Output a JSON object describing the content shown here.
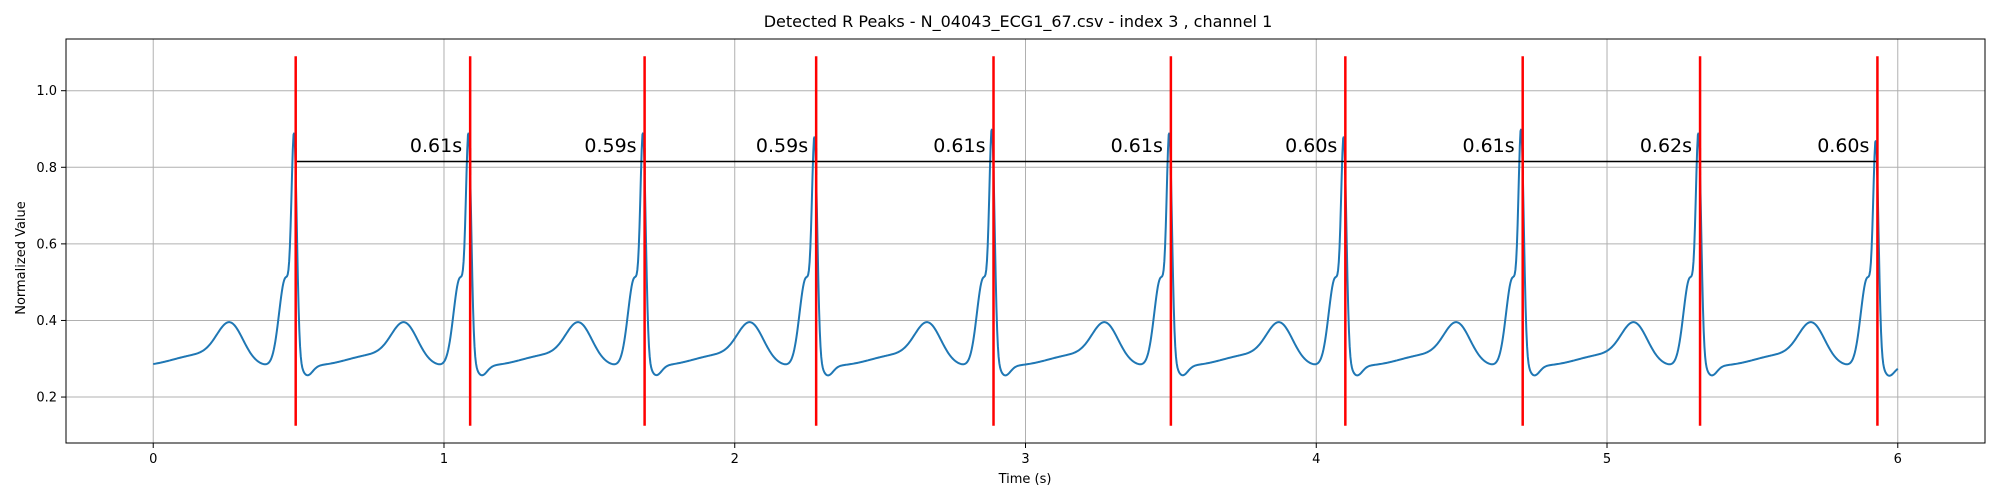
{
  "chart_data": {
    "type": "line",
    "title": "Detected R Peaks - N_04043_ECG1_67.csv - index 3 , channel 1",
    "xlabel": "Time (s)",
    "ylabel": "Normalized Value",
    "xlim": [
      -0.3,
      6.3
    ],
    "ylim": [
      0.08,
      1.135
    ],
    "x_ticks": [
      0,
      1,
      2,
      3,
      4,
      5,
      6
    ],
    "x_tick_labels": [
      "0",
      "1",
      "2",
      "3",
      "4",
      "5",
      "6"
    ],
    "y_ticks": [
      0.2,
      0.4,
      0.6,
      0.8,
      1.0
    ],
    "y_tick_labels": [
      "0.2",
      "0.4",
      "0.6",
      "0.8",
      "1.0"
    ],
    "grid": true,
    "signal": {
      "duration": 6.0,
      "color": "#1f77b4",
      "baseline": 0.28
    },
    "r_peaks": {
      "times": [
        0.49,
        1.09,
        1.69,
        2.28,
        2.89,
        3.5,
        4.1,
        4.71,
        5.32,
        5.93
      ],
      "peak_values": [
        0.94,
        0.94,
        0.94,
        0.93,
        0.95,
        0.94,
        0.93,
        0.95,
        0.94,
        0.92
      ],
      "marker_y_range": [
        0.125,
        1.09
      ],
      "color": "#ff0000"
    },
    "rr_intervals": {
      "line_y": 0.815,
      "tick_y_range": [
        0.78,
        0.85
      ],
      "color": "#000000",
      "labels": [
        "0.61s",
        "0.59s",
        "0.59s",
        "0.61s",
        "0.61s",
        "0.60s",
        "0.61s",
        "0.62s",
        "0.60s"
      ],
      "label_y": 0.84
    }
  }
}
